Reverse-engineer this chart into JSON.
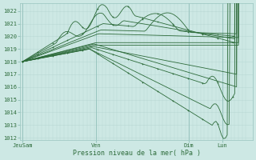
{
  "bg_color": "#cde8e4",
  "grid_color_minor": "#b8d8d4",
  "grid_color_major": "#98c4be",
  "line_color": "#2d6b3a",
  "ylabel_values": [
    1012,
    1013,
    1014,
    1015,
    1016,
    1017,
    1018,
    1019,
    1020,
    1021,
    1022
  ],
  "ymin": 1011.8,
  "ymax": 1022.6,
  "xlabel": "Pression niveau de la mer( hPa )",
  "xtick_labels": [
    "JeuSam",
    "Ven",
    "Dim",
    "Lun"
  ],
  "xtick_positions": [
    0.0,
    0.33,
    0.745,
    0.895
  ],
  "num_points": 120
}
